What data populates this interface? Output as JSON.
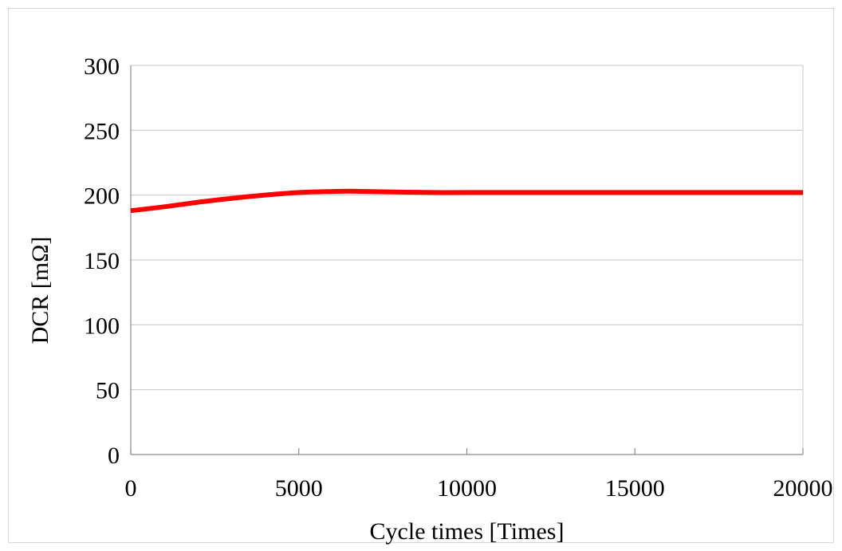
{
  "chart_data": {
    "type": "line",
    "title": "",
    "xlabel": "Cycle times  [Times]",
    "ylabel": "DCR [mΩ]",
    "xlim": [
      0,
      20000
    ],
    "ylim": [
      0,
      300
    ],
    "xticks": [
      0,
      5000,
      10000,
      15000,
      20000
    ],
    "yticks": [
      0,
      50,
      100,
      150,
      200,
      250,
      300
    ],
    "grid": "horizontal",
    "legend": "none",
    "series": [
      {
        "color": "#ff0000",
        "x": [
          0,
          1000,
          2000,
          3000,
          4000,
          5000,
          6000,
          6500,
          7000,
          8000,
          9000,
          10000,
          12000,
          14000,
          16000,
          18000,
          20000
        ],
        "y": [
          188,
          191,
          194.5,
          197.5,
          200,
          202,
          202.8,
          203,
          202.8,
          202.3,
          202,
          202,
          202,
          202,
          202,
          202,
          202
        ]
      }
    ]
  }
}
